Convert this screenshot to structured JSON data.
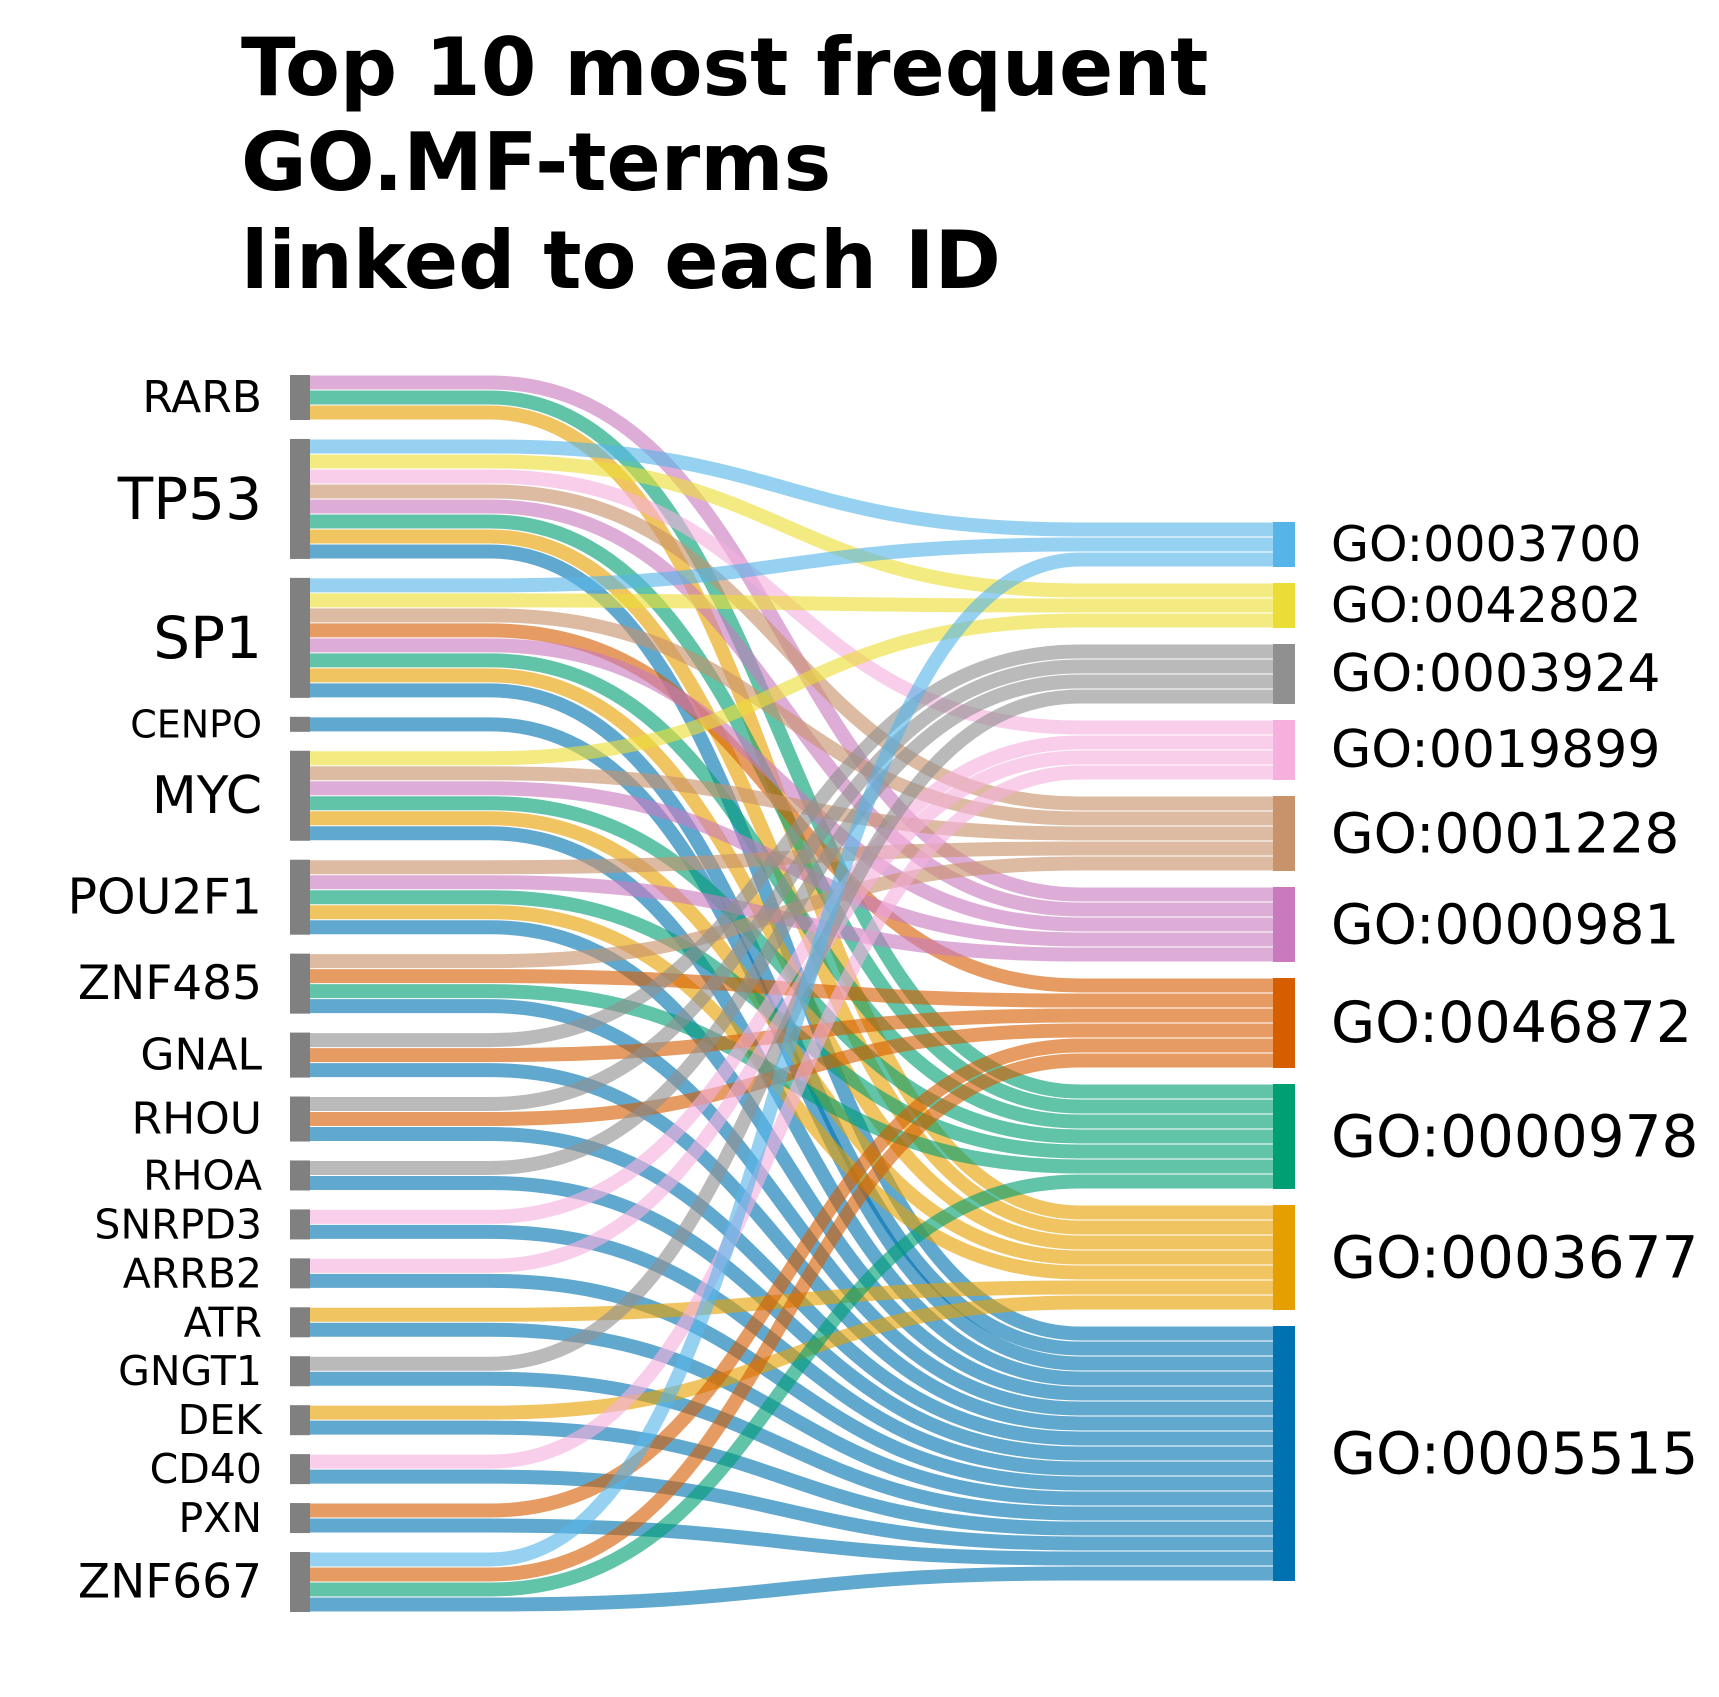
{
  "chart_data": {
    "type": "sankey",
    "title_lines": [
      "Top 10 most frequent",
      "GO.MF-terms",
      "linked to each ID"
    ],
    "colors": {
      "source_node": "#808080",
      "GO:0003700": "#56B4E9",
      "GO:0042802": "#EBDD35",
      "GO:0003924": "#909090",
      "GO:0019899": "#F5B0DD",
      "GO:0001228": "#C8926A",
      "GO:0000981": "#C97ABF",
      "GO:0046872": "#D55E00",
      "GO:0000978": "#009E73",
      "GO:0003677": "#E69F00",
      "GO:0005515": "#0072B2"
    },
    "sources": [
      {
        "id": "RARB",
        "targets": [
          "GO:0000981",
          "GO:0000978",
          "GO:0003677"
        ]
      },
      {
        "id": "TP53",
        "targets": [
          "GO:0003700",
          "GO:0042802",
          "GO:0019899",
          "GO:0001228",
          "GO:0000981",
          "GO:0000978",
          "GO:0003677",
          "GO:0005515"
        ]
      },
      {
        "id": "SP1",
        "targets": [
          "GO:0003700",
          "GO:0042802",
          "GO:0001228",
          "GO:0046872",
          "GO:0000981",
          "GO:0000978",
          "GO:0003677",
          "GO:0005515"
        ]
      },
      {
        "id": "CENPO",
        "targets": [
          "GO:0005515"
        ]
      },
      {
        "id": "MYC",
        "targets": [
          "GO:0042802",
          "GO:0001228",
          "GO:0000981",
          "GO:0000978",
          "GO:0003677",
          "GO:0005515"
        ]
      },
      {
        "id": "POU2F1",
        "targets": [
          "GO:0001228",
          "GO:0000981",
          "GO:0000978",
          "GO:0003677",
          "GO:0005515"
        ]
      },
      {
        "id": "ZNF485",
        "targets": [
          "GO:0001228",
          "GO:0046872",
          "GO:0000978",
          "GO:0005515"
        ]
      },
      {
        "id": "GNAL",
        "targets": [
          "GO:0003924",
          "GO:0046872",
          "GO:0005515"
        ]
      },
      {
        "id": "RHOU",
        "targets": [
          "GO:0003924",
          "GO:0046872",
          "GO:0005515"
        ]
      },
      {
        "id": "RHOA",
        "targets": [
          "GO:0003924",
          "GO:0005515"
        ]
      },
      {
        "id": "SNRPD3",
        "targets": [
          "GO:0019899",
          "GO:0005515"
        ]
      },
      {
        "id": "ARRB2",
        "targets": [
          "GO:0019899",
          "GO:0005515"
        ]
      },
      {
        "id": "ATR",
        "targets": [
          "GO:0003677",
          "GO:0005515"
        ]
      },
      {
        "id": "GNGT1",
        "targets": [
          "GO:0003924",
          "GO:0005515"
        ]
      },
      {
        "id": "DEK",
        "targets": [
          "GO:0003677",
          "GO:0005515"
        ]
      },
      {
        "id": "CD40",
        "targets": [
          "GO:0019899",
          "GO:0005515"
        ]
      },
      {
        "id": "PXN",
        "targets": [
          "GO:0046872",
          "GO:0005515"
        ]
      },
      {
        "id": "ZNF667",
        "targets": [
          "GO:0003700",
          "GO:0046872",
          "GO:0000978",
          "GO:0005515"
        ]
      }
    ],
    "targets": [
      "GO:0003700",
      "GO:0042802",
      "GO:0003924",
      "GO:0019899",
      "GO:0001228",
      "GO:0000981",
      "GO:0046872",
      "GO:0000978",
      "GO:0003677",
      "GO:0005515"
    ]
  }
}
